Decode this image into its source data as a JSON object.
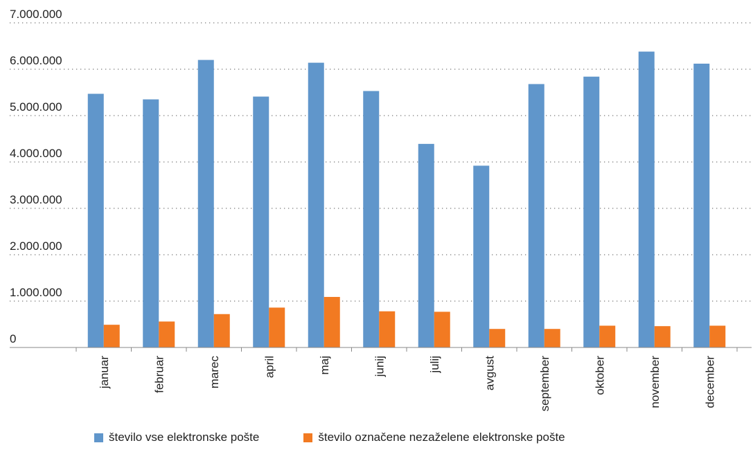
{
  "chart_data": {
    "type": "bar",
    "categories": [
      "januar",
      "februar",
      "marec",
      "april",
      "maj",
      "junij",
      "julij",
      "avgust",
      "september",
      "oktober",
      "november",
      "december"
    ],
    "series": [
      {
        "name": "število vse elektronske pošte",
        "color": "#6096CB",
        "values": [
          5470000,
          5350000,
          6200000,
          5410000,
          6140000,
          5530000,
          4390000,
          3920000,
          5680000,
          5840000,
          6380000,
          6120000
        ]
      },
      {
        "name": "število označene nezaželene elektronske pošte",
        "color": "#F27A22",
        "values": [
          490000,
          560000,
          720000,
          860000,
          1090000,
          780000,
          770000,
          400000,
          400000,
          470000,
          460000,
          470000
        ]
      }
    ],
    "yticks": [
      "0",
      "1.000.000",
      "2.000.000",
      "3.000.000",
      "4.000.000",
      "5.000.000",
      "6.000.000",
      "7.000.000"
    ],
    "ylim": [
      0,
      7000000
    ],
    "grid": "dotted-horizontal",
    "legend_position": "bottom"
  }
}
